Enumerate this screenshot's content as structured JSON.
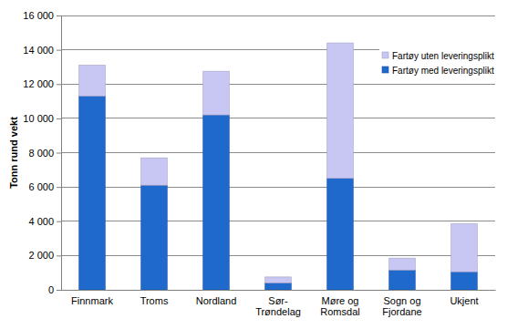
{
  "chart_data": {
    "type": "bar",
    "stacked": true,
    "y_label": "Tonn rund vekt",
    "categories": [
      "Finnmark",
      "Troms",
      "Nordland",
      "Sør-Trøndelag",
      "Møre og Romsdal",
      "Sogn og Fjordane",
      "Ukjent"
    ],
    "series": [
      {
        "name": "Fartøy med leveringsplikt",
        "color": "#1f68cc",
        "values": [
          11300,
          6100,
          10200,
          400,
          6500,
          1150,
          1050
        ]
      },
      {
        "name": "Fartøy uten leveringsplikt",
        "color": "#c8c6f2",
        "values": [
          1800,
          1600,
          2550,
          350,
          7900,
          700,
          2800
        ]
      }
    ],
    "ylim": [
      0,
      16000
    ],
    "yticks": [
      0,
      {
        "value": 2000,
        "label": "2 000"
      },
      {
        "value": 4000,
        "label": "4 000"
      },
      {
        "value": 6000,
        "label": "6 000"
      },
      {
        "value": 8000,
        "label": "8 000"
      },
      {
        "value": 10000,
        "label": "10 000"
      },
      {
        "value": 12000,
        "label": "12 000"
      },
      {
        "value": 14000,
        "label": "14 000"
      },
      {
        "value": 16000,
        "label": "16 000"
      }
    ],
    "grid": true,
    "legend": "top-right"
  }
}
